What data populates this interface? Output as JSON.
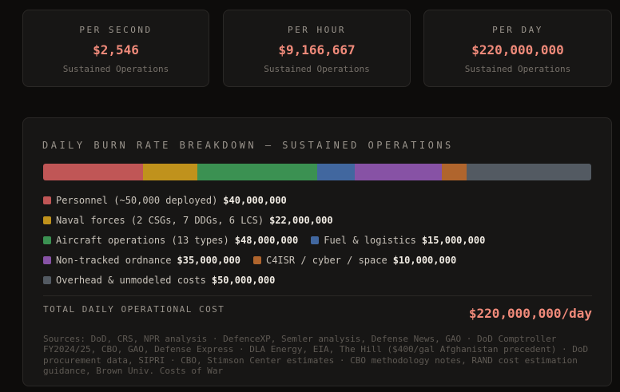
{
  "stats": [
    {
      "label": "PER SECOND",
      "value": "$2,546",
      "sub": "Sustained Operations"
    },
    {
      "label": "PER HOUR",
      "value": "$9,166,667",
      "sub": "Sustained Operations"
    },
    {
      "label": "PER DAY",
      "value": "$220,000,000",
      "sub": "Sustained Operations"
    }
  ],
  "breakdown": {
    "title": "DAILY BURN RATE BREAKDOWN — SUSTAINED OPERATIONS",
    "segments": [
      {
        "label": "Personnel (~50,000 deployed)",
        "value": "$40,000,000",
        "amount": 40000000,
        "color": "#c05656"
      },
      {
        "label": "Naval forces (2 CSGs, 7 DDGs, 6 LCS)",
        "value": "$22,000,000",
        "amount": 22000000,
        "color": "#c0921c"
      },
      {
        "label": "Aircraft operations (13 types)",
        "value": "$48,000,000",
        "amount": 48000000,
        "color": "#3b9152"
      },
      {
        "label": "Fuel & logistics",
        "value": "$15,000,000",
        "amount": 15000000,
        "color": "#41679f"
      },
      {
        "label": "Non-tracked ordnance",
        "value": "$35,000,000",
        "amount": 35000000,
        "color": "#8752a5"
      },
      {
        "label": "C4ISR / cyber / space",
        "value": "$10,000,000",
        "amount": 10000000,
        "color": "#b0652d"
      },
      {
        "label": "Overhead & unmodeled costs",
        "value": "$50,000,000",
        "amount": 50000000,
        "color": "#535a62"
      }
    ],
    "total_label": "TOTAL DAILY OPERATIONAL COST",
    "total_value": "$220,000,000/day",
    "sources": "Sources: DoD, CRS, NPR analysis · DefenceXP, Semler analysis, Defense News, GAO · DoD Comptroller FY2024/25, CBO, GAO, Defense Express · DLA Energy, EIA, The Hill ($400/gal Afghanistan precedent) · DoD procurement data, SIPRI · CBO, Stimson Center estimates · CBO methodology notes, RAND cost estimation guidance, Brown Univ. Costs of War"
  }
}
